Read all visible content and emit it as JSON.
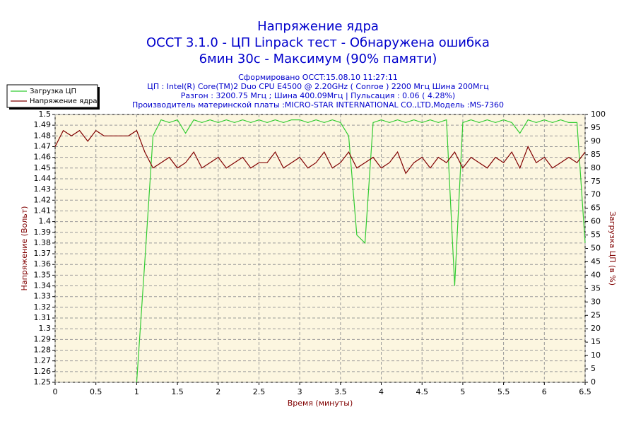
{
  "chart_data": {
    "type": "line",
    "title": [
      "Напряжение ядра",
      "OCCT 3.1.0 - ЦП Linpack тест - Обнаружена ошибка",
      "6мин 30с - Максимум (90% памяти)"
    ],
    "subtitle": [
      "Сформировано OCCT:15.08.10 11:27:11",
      "ЦП : Intel(R) Core(TM)2 Duo CPU E4500 @ 2.20GHz ( Conroe ) 2200 Мгц Шина 200Мгц",
      "Разгон : 3200.75 Мгц ; Шина 400.09Мгц | Пульсация : 0.06 ( 4.28%)",
      "Производитель материнской платы :MICRO-STAR INTERNATIONAL CO.,LTD,Модель :MS-7360"
    ],
    "x_label": "Время (минуты)",
    "y_label": "Напряжение (Вольт)",
    "y2_label": "Загрузка ЦП (в %)",
    "x": [
      0,
      0.1,
      0.2,
      0.3,
      0.4,
      0.5,
      0.6,
      0.7,
      0.8,
      0.9,
      1,
      1.1,
      1.2,
      1.3,
      1.4,
      1.5,
      1.6,
      1.7,
      1.8,
      1.9,
      2,
      2.1,
      2.2,
      2.3,
      2.4,
      2.5,
      2.6,
      2.7,
      2.8,
      2.9,
      3,
      3.1,
      3.2,
      3.3,
      3.4,
      3.5,
      3.6,
      3.7,
      3.8,
      3.9,
      4,
      4.1,
      4.2,
      4.3,
      4.4,
      4.5,
      4.6,
      4.7,
      4.8,
      4.9,
      5,
      5.1,
      5.2,
      5.3,
      5.4,
      5.5,
      5.6,
      5.7,
      5.8,
      5.9,
      6,
      6.1,
      6.2,
      6.3,
      6.4,
      6.5
    ],
    "series": [
      {
        "name": "Загрузка ЦП",
        "color": "#33cc33",
        "axis": "y2",
        "values": [
          null,
          null,
          null,
          null,
          null,
          null,
          null,
          null,
          null,
          null,
          0,
          45,
          92,
          98,
          97,
          98,
          93,
          98,
          97,
          98,
          97,
          98,
          97,
          98,
          97,
          98,
          97,
          98,
          97,
          98,
          98,
          97,
          98,
          97,
          98,
          97,
          92,
          55,
          52,
          97,
          98,
          97,
          98,
          97,
          98,
          97,
          98,
          97,
          98,
          36,
          97,
          98,
          97,
          98,
          97,
          98,
          97,
          93,
          98,
          97,
          98,
          97,
          98,
          97,
          97,
          52
        ]
      },
      {
        "name": "Напряжение ядра",
        "color": "#800000",
        "values": [
          1.47,
          1.485,
          1.48,
          1.485,
          1.475,
          1.485,
          1.48,
          1.48,
          1.48,
          1.48,
          1.485,
          1.465,
          1.45,
          1.455,
          1.46,
          1.45,
          1.455,
          1.465,
          1.45,
          1.455,
          1.46,
          1.45,
          1.455,
          1.46,
          1.45,
          1.455,
          1.455,
          1.465,
          1.45,
          1.455,
          1.46,
          1.45,
          1.455,
          1.465,
          1.45,
          1.455,
          1.465,
          1.45,
          1.455,
          1.46,
          1.45,
          1.455,
          1.465,
          1.445,
          1.455,
          1.46,
          1.45,
          1.46,
          1.455,
          1.465,
          1.45,
          1.46,
          1.455,
          1.45,
          1.46,
          1.455,
          1.465,
          1.45,
          1.47,
          1.455,
          1.46,
          1.45,
          1.455,
          1.46,
          1.455,
          1.465
        ]
      }
    ],
    "xlim": [
      0,
      6.5
    ],
    "xticks": [
      0,
      0.5,
      1,
      1.5,
      2,
      2.5,
      3,
      3.5,
      4,
      4.5,
      5,
      5.5,
      6,
      6.5
    ],
    "ylim": [
      1.25,
      1.5
    ],
    "yticks": [
      1.25,
      1.26,
      1.27,
      1.28,
      1.29,
      1.3,
      1.31,
      1.32,
      1.33,
      1.34,
      1.35,
      1.36,
      1.37,
      1.38,
      1.39,
      1.4,
      1.41,
      1.42,
      1.43,
      1.44,
      1.45,
      1.46,
      1.47,
      1.48,
      1.49,
      1.5
    ],
    "y2lim": [
      0,
      100
    ],
    "y2ticks": [
      0,
      5,
      10,
      15,
      20,
      25,
      30,
      35,
      40,
      45,
      50,
      55,
      60,
      65,
      70,
      75,
      80,
      85,
      90,
      95,
      100
    ],
    "grid": true,
    "legend": "top-left"
  }
}
